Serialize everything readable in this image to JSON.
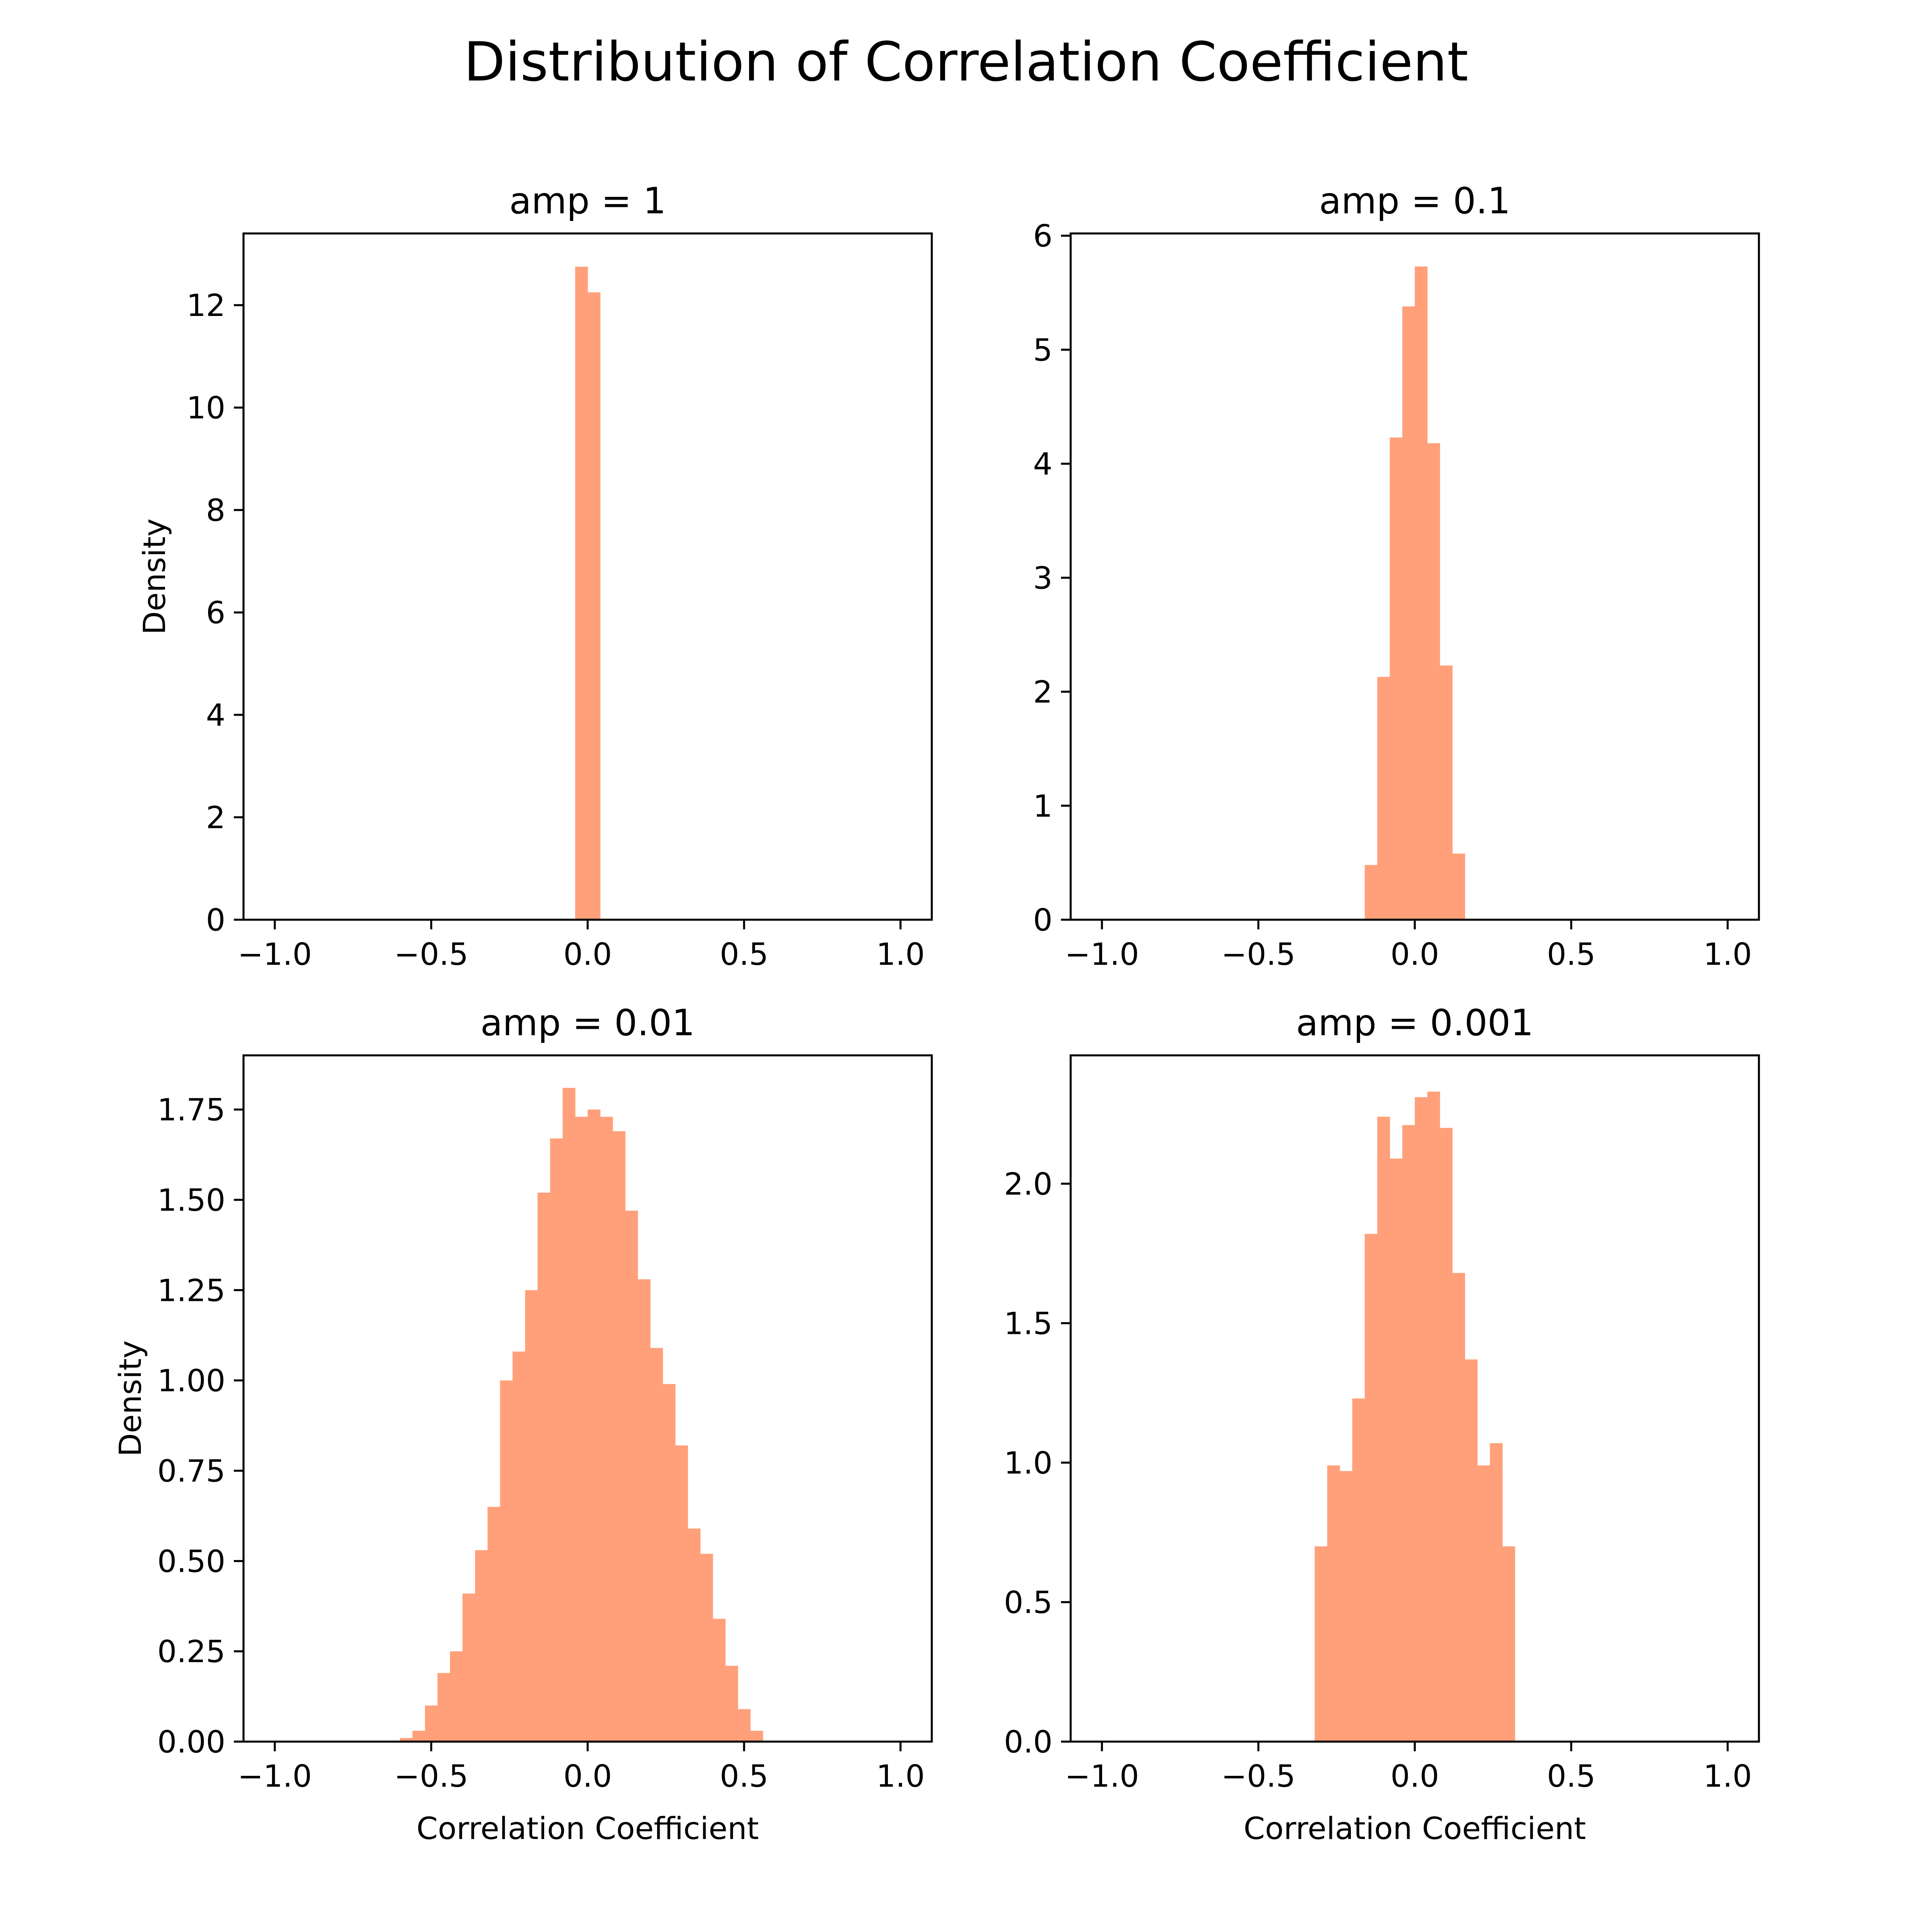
{
  "title": "Distribution of Correlation Coefficient",
  "colors": {
    "bar": "#FFA07A",
    "axis": "#000000",
    "background": "#ffffff"
  },
  "chart_data": [
    {
      "type": "bar",
      "subtype": "histogram",
      "title": "amp = 1",
      "xlabel": "",
      "ylabel": "Density",
      "xlim": [
        -1.1,
        1.1
      ],
      "ylim": [
        0,
        13.4
      ],
      "xticks": [
        -1.0,
        -0.5,
        0.0,
        0.5,
        1.0
      ],
      "xtick_labels": [
        "−1.0",
        "−0.5",
        "0.0",
        "0.5",
        "1.0"
      ],
      "yticks": [
        0,
        2,
        4,
        6,
        8,
        10,
        12
      ],
      "ytick_labels": [
        "0",
        "2",
        "4",
        "6",
        "8",
        "10",
        "12"
      ],
      "bin_width": 0.04,
      "bins": [
        {
          "x0": -0.04,
          "x1": 0.0,
          "value": 12.75
        },
        {
          "x0": 0.0,
          "x1": 0.04,
          "value": 12.25
        }
      ]
    },
    {
      "type": "bar",
      "subtype": "histogram",
      "title": "amp = 0.1",
      "xlabel": "",
      "ylabel": "",
      "xlim": [
        -1.1,
        1.1
      ],
      "ylim": [
        0,
        6.02
      ],
      "xticks": [
        -1.0,
        -0.5,
        0.0,
        0.5,
        1.0
      ],
      "xtick_labels": [
        "−1.0",
        "−0.5",
        "0.0",
        "0.5",
        "1.0"
      ],
      "yticks": [
        0,
        1,
        2,
        3,
        4,
        5,
        6
      ],
      "ytick_labels": [
        "0",
        "1",
        "2",
        "3",
        "4",
        "5",
        "6"
      ],
      "bin_width": 0.04,
      "bins": [
        {
          "x0": -0.16,
          "x1": -0.12,
          "value": 0.48
        },
        {
          "x0": -0.12,
          "x1": -0.08,
          "value": 2.13
        },
        {
          "x0": -0.08,
          "x1": -0.04,
          "value": 4.23
        },
        {
          "x0": -0.04,
          "x1": 0.0,
          "value": 5.38
        },
        {
          "x0": 0.0,
          "x1": 0.04,
          "value": 5.73
        },
        {
          "x0": 0.04,
          "x1": 0.08,
          "value": 4.18
        },
        {
          "x0": 0.08,
          "x1": 0.12,
          "value": 2.23
        },
        {
          "x0": 0.12,
          "x1": 0.16,
          "value": 0.58
        }
      ]
    },
    {
      "type": "bar",
      "subtype": "histogram",
      "title": "amp = 0.01",
      "xlabel": "Correlation Coefficient",
      "ylabel": "Density",
      "xlim": [
        -1.1,
        1.1
      ],
      "ylim": [
        0,
        1.9
      ],
      "xticks": [
        -1.0,
        -0.5,
        0.0,
        0.5,
        1.0
      ],
      "xtick_labels": [
        "−1.0",
        "−0.5",
        "0.0",
        "0.5",
        "1.0"
      ],
      "yticks": [
        0,
        0.25,
        0.5,
        0.75,
        1.0,
        1.25,
        1.5,
        1.75
      ],
      "ytick_labels": [
        "0.00",
        "0.25",
        "0.50",
        "0.75",
        "1.00",
        "1.25",
        "1.50",
        "1.75"
      ],
      "bin_width": 0.04,
      "bins": [
        {
          "x0": -0.6,
          "x1": -0.56,
          "value": 0.01
        },
        {
          "x0": -0.56,
          "x1": -0.52,
          "value": 0.03
        },
        {
          "x0": -0.52,
          "x1": -0.48,
          "value": 0.1
        },
        {
          "x0": -0.48,
          "x1": -0.44,
          "value": 0.19
        },
        {
          "x0": -0.44,
          "x1": -0.4,
          "value": 0.25
        },
        {
          "x0": -0.4,
          "x1": -0.36,
          "value": 0.41
        },
        {
          "x0": -0.36,
          "x1": -0.32,
          "value": 0.53
        },
        {
          "x0": -0.32,
          "x1": -0.28,
          "value": 0.65
        },
        {
          "x0": -0.28,
          "x1": -0.24,
          "value": 1.0
        },
        {
          "x0": -0.24,
          "x1": -0.2,
          "value": 1.08
        },
        {
          "x0": -0.2,
          "x1": -0.16,
          "value": 1.25
        },
        {
          "x0": -0.16,
          "x1": -0.12,
          "value": 1.52
        },
        {
          "x0": -0.12,
          "x1": -0.08,
          "value": 1.67
        },
        {
          "x0": -0.08,
          "x1": -0.04,
          "value": 1.81
        },
        {
          "x0": -0.04,
          "x1": 0.0,
          "value": 1.73
        },
        {
          "x0": 0.0,
          "x1": 0.04,
          "value": 1.75
        },
        {
          "x0": 0.04,
          "x1": 0.08,
          "value": 1.73
        },
        {
          "x0": 0.08,
          "x1": 0.12,
          "value": 1.69
        },
        {
          "x0": 0.12,
          "x1": 0.16,
          "value": 1.47
        },
        {
          "x0": 0.16,
          "x1": 0.2,
          "value": 1.28
        },
        {
          "x0": 0.2,
          "x1": 0.24,
          "value": 1.09
        },
        {
          "x0": 0.24,
          "x1": 0.28,
          "value": 0.99
        },
        {
          "x0": 0.28,
          "x1": 0.32,
          "value": 0.82
        },
        {
          "x0": 0.32,
          "x1": 0.36,
          "value": 0.59
        },
        {
          "x0": 0.36,
          "x1": 0.4,
          "value": 0.52
        },
        {
          "x0": 0.4,
          "x1": 0.44,
          "value": 0.34
        },
        {
          "x0": 0.44,
          "x1": 0.48,
          "value": 0.21
        },
        {
          "x0": 0.48,
          "x1": 0.52,
          "value": 0.09
        },
        {
          "x0": 0.52,
          "x1": 0.56,
          "value": 0.03
        }
      ]
    },
    {
      "type": "bar",
      "subtype": "histogram",
      "title": "amp = 0.001",
      "xlabel": "Correlation Coefficient",
      "ylabel": "",
      "xlim": [
        -1.1,
        1.1
      ],
      "ylim": [
        0,
        2.46
      ],
      "xticks": [
        -1.0,
        -0.5,
        0.0,
        0.5,
        1.0
      ],
      "xtick_labels": [
        "−1.0",
        "−0.5",
        "0.0",
        "0.5",
        "1.0"
      ],
      "yticks": [
        0,
        0.5,
        1.0,
        1.5,
        2.0
      ],
      "ytick_labels": [
        "0.0",
        "0.5",
        "1.0",
        "1.5",
        "2.0"
      ],
      "bin_width": 0.04,
      "bins": [
        {
          "x0": -0.32,
          "x1": -0.28,
          "value": 0.7
        },
        {
          "x0": -0.28,
          "x1": -0.24,
          "value": 0.99
        },
        {
          "x0": -0.24,
          "x1": -0.2,
          "value": 0.97
        },
        {
          "x0": -0.2,
          "x1": -0.16,
          "value": 1.23
        },
        {
          "x0": -0.16,
          "x1": -0.12,
          "value": 1.82
        },
        {
          "x0": -0.12,
          "x1": -0.08,
          "value": 2.24
        },
        {
          "x0": -0.08,
          "x1": -0.04,
          "value": 2.09
        },
        {
          "x0": -0.04,
          "x1": 0.0,
          "value": 2.21
        },
        {
          "x0": 0.0,
          "x1": 0.04,
          "value": 2.31
        },
        {
          "x0": 0.04,
          "x1": 0.08,
          "value": 2.33
        },
        {
          "x0": 0.08,
          "x1": 0.12,
          "value": 2.2
        },
        {
          "x0": 0.12,
          "x1": 0.16,
          "value": 1.68
        },
        {
          "x0": 0.16,
          "x1": 0.2,
          "value": 1.37
        },
        {
          "x0": 0.2,
          "x1": 0.24,
          "value": 0.99
        },
        {
          "x0": 0.24,
          "x1": 0.28,
          "value": 1.07
        },
        {
          "x0": 0.28,
          "x1": 0.32,
          "value": 0.7
        }
      ]
    }
  ]
}
